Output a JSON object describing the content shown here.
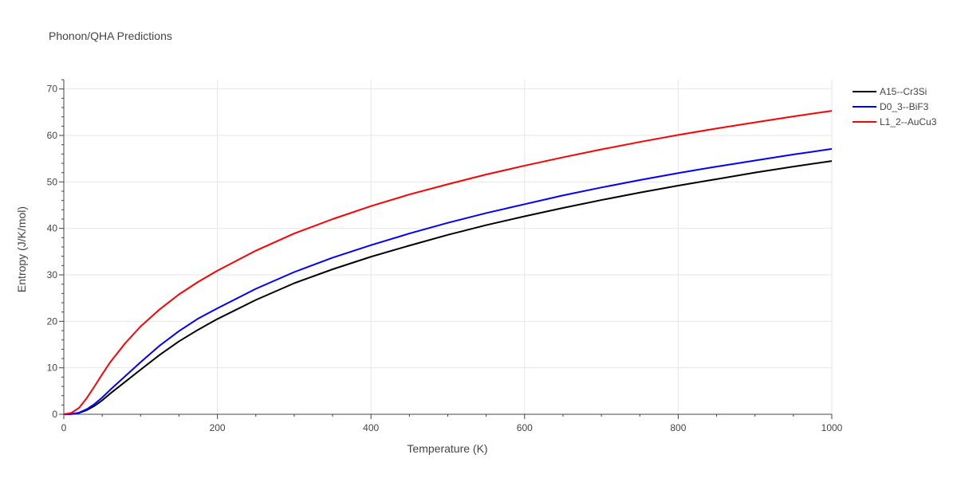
{
  "chart_data": {
    "type": "line",
    "title": "Phonon/QHA Predictions",
    "xlabel": "Temperature (K)",
    "ylabel": "Entropy (J/K/mol)",
    "xlim": [
      0,
      1000
    ],
    "ylim": [
      0,
      72
    ],
    "xticks": [
      0,
      200,
      400,
      600,
      800,
      1000
    ],
    "yticks": [
      0,
      10,
      20,
      30,
      40,
      50,
      60,
      70
    ],
    "grid": true,
    "legend_position": "top-right",
    "series": [
      {
        "name": "A15--Cr3Si",
        "color": "#000000",
        "x": [
          0,
          10,
          20,
          30,
          40,
          50,
          60,
          80,
          100,
          125,
          150,
          175,
          200,
          250,
          300,
          350,
          400,
          450,
          500,
          550,
          600,
          650,
          700,
          750,
          800,
          850,
          900,
          950,
          1000
        ],
        "y": [
          0,
          0.05,
          0.3,
          0.9,
          1.8,
          3.0,
          4.4,
          7.0,
          9.6,
          12.8,
          15.7,
          18.2,
          20.5,
          24.6,
          28.2,
          31.2,
          33.9,
          36.3,
          38.6,
          40.7,
          42.6,
          44.4,
          46.1,
          47.7,
          49.2,
          50.6,
          52.0,
          53.3,
          54.5
        ]
      },
      {
        "name": "D0_3--BiF3",
        "color": "#0000ff",
        "x": [
          0,
          10,
          20,
          30,
          40,
          50,
          60,
          80,
          100,
          125,
          150,
          175,
          200,
          250,
          300,
          350,
          400,
          450,
          500,
          550,
          600,
          650,
          700,
          750,
          800,
          850,
          900,
          950,
          1000
        ],
        "y": [
          0,
          0.05,
          0.35,
          1.1,
          2.2,
          3.6,
          5.2,
          8.2,
          11.2,
          14.8,
          17.9,
          20.6,
          22.8,
          27.0,
          30.6,
          33.7,
          36.4,
          38.9,
          41.2,
          43.3,
          45.2,
          47.1,
          48.8,
          50.4,
          51.9,
          53.3,
          54.6,
          55.9,
          57.1
        ]
      },
      {
        "name": "L1_2--AuCu3",
        "color": "#ff0000",
        "x": [
          0,
          10,
          20,
          30,
          40,
          50,
          60,
          80,
          100,
          125,
          150,
          175,
          200,
          250,
          300,
          350,
          400,
          450,
          500,
          550,
          600,
          650,
          700,
          750,
          800,
          850,
          900,
          950,
          1000
        ],
        "y": [
          0,
          0.3,
          1.4,
          3.5,
          6.0,
          8.6,
          11.1,
          15.3,
          18.9,
          22.6,
          25.8,
          28.5,
          30.9,
          35.2,
          38.9,
          42.0,
          44.8,
          47.3,
          49.5,
          51.6,
          53.5,
          55.3,
          57.0,
          58.6,
          60.1,
          61.5,
          62.8,
          64.1,
          65.3
        ]
      }
    ]
  }
}
